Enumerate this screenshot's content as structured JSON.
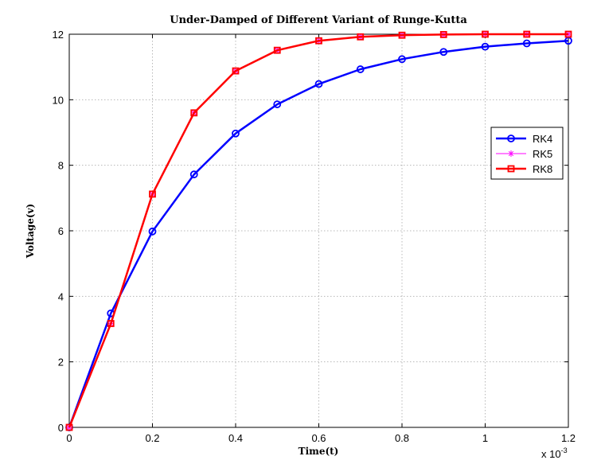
{
  "chart_data": {
    "type": "line",
    "title": "Under-Damped of Different Variant of Runge-Kutta",
    "xlabel": "Time(t)",
    "ylabel": "Voltage(v)",
    "x_multiplier": "x 10",
    "x_multiplier_exp": "-3",
    "xlim": [
      0,
      1.2
    ],
    "ylim": [
      0,
      12
    ],
    "x_ticks": [
      "0",
      "0.2",
      "0.4",
      "0.6",
      "0.8",
      "1",
      "1.2"
    ],
    "y_ticks": [
      "0",
      "2",
      "4",
      "6",
      "8",
      "10",
      "12"
    ],
    "grid": true,
    "legend_position": "right",
    "x": [
      0,
      0.1,
      0.2,
      0.3,
      0.4,
      0.5,
      0.6,
      0.7,
      0.8,
      0.9,
      1.0,
      1.1,
      1.2
    ],
    "series": [
      {
        "name": "RK4",
        "color": "#0000ff",
        "marker": "circle",
        "values": [
          0,
          3.48,
          5.98,
          7.72,
          8.97,
          9.86,
          10.48,
          10.93,
          11.24,
          11.46,
          11.62,
          11.72,
          11.8
        ]
      },
      {
        "name": "RK5",
        "color": "#ff00ff",
        "marker": "star",
        "values": [
          0,
          3.17,
          7.12,
          9.6,
          10.88,
          11.51,
          11.8,
          11.92,
          11.97,
          11.99,
          12.0,
          12.0,
          12.0
        ]
      },
      {
        "name": "RK8",
        "color": "#ff0000",
        "marker": "square",
        "values": [
          0,
          3.17,
          7.12,
          9.6,
          10.88,
          11.51,
          11.8,
          11.92,
          11.97,
          11.99,
          12.0,
          12.0,
          12.0
        ]
      }
    ]
  }
}
